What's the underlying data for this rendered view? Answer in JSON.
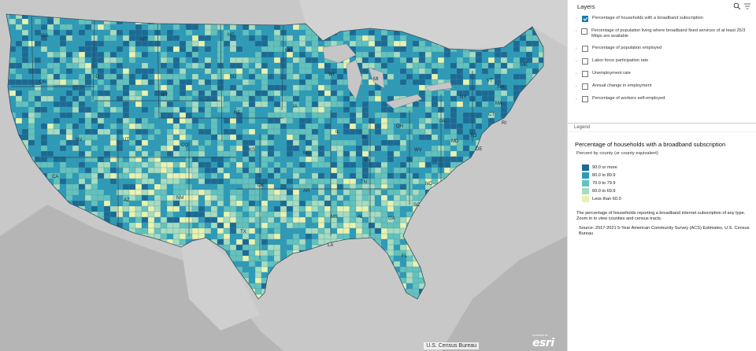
{
  "map": {
    "state_labels": [
      "WA",
      "MT",
      "ND",
      "OR",
      "ID",
      "SD",
      "MN",
      "WI",
      "MI",
      "ME",
      "VT",
      "NH",
      "NY",
      "MA",
      "WY",
      "NE",
      "IA",
      "CT",
      "RI",
      "PA",
      "NV",
      "UT",
      "CO",
      "IL",
      "OH",
      "NJ",
      "IN",
      "MD",
      "DE",
      "CA",
      "KS",
      "MO",
      "WV",
      "KY",
      "VA",
      "AZ",
      "NM",
      "OK",
      "AR",
      "TN",
      "NC",
      "SC",
      "MS",
      "AL",
      "GA",
      "TX",
      "LA",
      "FL"
    ],
    "attribution": "U.S. Census Bureau",
    "logo_text": "esri",
    "logo_small": "POWERED BY"
  },
  "layers": {
    "title": "Layers",
    "items": [
      {
        "label": "Percentage of households with a broadband subscription",
        "checked": true
      },
      {
        "label": "Percentage of population living where broadband fixed services of at least 25/3 Mbps are available",
        "checked": false
      },
      {
        "label": "Percentage of population employed",
        "checked": false
      },
      {
        "label": "Labor force participation rate",
        "checked": false
      },
      {
        "label": "Unemployment rate",
        "checked": false
      },
      {
        "label": "Annual change in employment",
        "checked": false
      },
      {
        "label": "Percentage of workers self-employed",
        "checked": false
      }
    ]
  },
  "legend": {
    "tab": "Legend",
    "title": "Percentage of households with a broadband subscription",
    "subtitle": "Percent by county (or county equivalent)",
    "classes": [
      {
        "label": "90.0 or more",
        "color": "#1a6a94"
      },
      {
        "label": "80.0 to 89.9",
        "color": "#2c9bb8"
      },
      {
        "label": "70.0 to 79.9",
        "color": "#62c2bd"
      },
      {
        "label": "60.0 to 69.9",
        "color": "#a6dcc0"
      },
      {
        "label": "Less than 60.0",
        "color": "#e8f2b0"
      }
    ],
    "description": "The percentage of households reporting a broadband internet subscription of any type. Zoom in to view counties and census tracts.",
    "source": "Source: 2017-2021 5-Year American Community Survey (ACS) Estimates, U.S. Census Bureau"
  }
}
